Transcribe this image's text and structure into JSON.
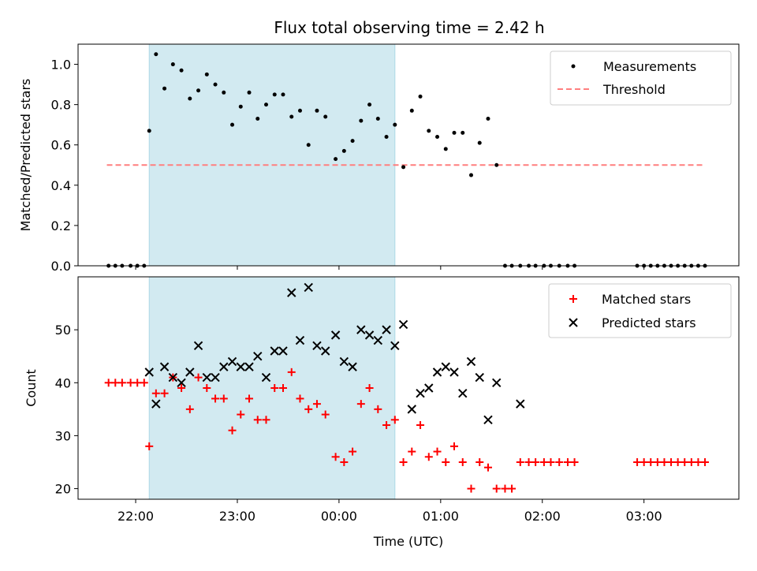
{
  "title": "Flux total observing time = 2.42 h",
  "colors": {
    "shade": "#add8e6",
    "measurement": "#000000",
    "threshold": "#ff7f7f",
    "matched": "#ff0000",
    "predicted": "#000000"
  },
  "chart_data": [
    {
      "type": "scatter",
      "title": "Flux total observing time = 2.42 h",
      "xlabel": "",
      "ylabel": "Matched/Predicted stars",
      "ylim": [
        0,
        1.1
      ],
      "yticks": [
        "0.0",
        "0.2",
        "0.4",
        "0.6",
        "0.8",
        "1.0"
      ],
      "xlim": [
        "21:26",
        "03:56"
      ],
      "grid": false,
      "legend": "top-right",
      "shaded_region": [
        "22:08",
        "00:33"
      ],
      "threshold": {
        "name": "Threshold",
        "y": 0.5,
        "x": [
          "21:43",
          "03:36"
        ],
        "style": "dashed"
      },
      "series": [
        {
          "name": "Measurements",
          "marker": "dot",
          "points": [
            [
              "21:44",
              0
            ],
            [
              "21:48",
              0
            ],
            [
              "21:52",
              0
            ],
            [
              "21:57",
              0
            ],
            [
              "22:01",
              0
            ],
            [
              "22:05",
              0
            ],
            [
              "22:08",
              0.67
            ],
            [
              "22:12",
              1.05
            ],
            [
              "22:17",
              0.88
            ],
            [
              "22:22",
              1.0
            ],
            [
              "22:27",
              0.97
            ],
            [
              "22:32",
              0.83
            ],
            [
              "22:37",
              0.87
            ],
            [
              "22:42",
              0.95
            ],
            [
              "22:47",
              0.9
            ],
            [
              "22:52",
              0.86
            ],
            [
              "22:57",
              0.7
            ],
            [
              "23:02",
              0.79
            ],
            [
              "23:07",
              0.86
            ],
            [
              "23:12",
              0.73
            ],
            [
              "23:17",
              0.8
            ],
            [
              "23:22",
              0.85
            ],
            [
              "23:27",
              0.85
            ],
            [
              "23:32",
              0.74
            ],
            [
              "23:37",
              0.77
            ],
            [
              "23:42",
              0.6
            ],
            [
              "23:47",
              0.77
            ],
            [
              "23:52",
              0.74
            ],
            [
              "23:58",
              0.53
            ],
            [
              "00:03",
              0.57
            ],
            [
              "00:08",
              0.62
            ],
            [
              "00:13",
              0.72
            ],
            [
              "00:18",
              0.8
            ],
            [
              "00:23",
              0.73
            ],
            [
              "00:28",
              0.64
            ],
            [
              "00:33",
              0.7
            ],
            [
              "00:38",
              0.49
            ],
            [
              "00:43",
              0.77
            ],
            [
              "00:48",
              0.84
            ],
            [
              "00:53",
              0.67
            ],
            [
              "00:58",
              0.64
            ],
            [
              "01:03",
              0.58
            ],
            [
              "01:08",
              0.66
            ],
            [
              "01:13",
              0.66
            ],
            [
              "01:18",
              0.45
            ],
            [
              "01:23",
              0.61
            ],
            [
              "01:28",
              0.73
            ],
            [
              "01:33",
              0.5
            ],
            [
              "01:38",
              0
            ],
            [
              "01:42",
              0
            ],
            [
              "01:47",
              0
            ],
            [
              "01:52",
              0
            ],
            [
              "01:56",
              0
            ],
            [
              "02:01",
              0
            ],
            [
              "02:05",
              0
            ],
            [
              "02:10",
              0
            ],
            [
              "02:15",
              0
            ],
            [
              "02:19",
              0
            ],
            [
              "02:56",
              0
            ],
            [
              "03:00",
              0
            ],
            [
              "03:04",
              0
            ],
            [
              "03:08",
              0
            ],
            [
              "03:12",
              0
            ],
            [
              "03:16",
              0
            ],
            [
              "03:20",
              0
            ],
            [
              "03:24",
              0
            ],
            [
              "03:28",
              0
            ],
            [
              "03:32",
              0
            ],
            [
              "03:36",
              0
            ]
          ]
        }
      ]
    },
    {
      "type": "scatter",
      "xlabel": "Time (UTC)",
      "ylabel": "Count",
      "ylim": [
        18,
        60
      ],
      "yticks": [
        "20",
        "30",
        "40",
        "50"
      ],
      "xlim": [
        "21:26",
        "03:56"
      ],
      "xticks": [
        "22:00",
        "23:00",
        "00:00",
        "01:00",
        "02:00",
        "03:00"
      ],
      "grid": false,
      "legend": "top-right",
      "shaded_region": [
        "22:08",
        "00:33"
      ],
      "series": [
        {
          "name": "Matched stars",
          "marker": "plus",
          "points": [
            [
              "21:44",
              40
            ],
            [
              "21:48",
              40
            ],
            [
              "21:52",
              40
            ],
            [
              "21:57",
              40
            ],
            [
              "22:01",
              40
            ],
            [
              "22:05",
              40
            ],
            [
              "22:08",
              28
            ],
            [
              "22:12",
              38
            ],
            [
              "22:17",
              38
            ],
            [
              "22:22",
              41
            ],
            [
              "22:27",
              39
            ],
            [
              "22:32",
              35
            ],
            [
              "22:37",
              41
            ],
            [
              "22:42",
              39
            ],
            [
              "22:47",
              37
            ],
            [
              "22:52",
              37
            ],
            [
              "22:57",
              31
            ],
            [
              "23:02",
              34
            ],
            [
              "23:07",
              37
            ],
            [
              "23:12",
              33
            ],
            [
              "23:17",
              33
            ],
            [
              "23:22",
              39
            ],
            [
              "23:27",
              39
            ],
            [
              "23:32",
              42
            ],
            [
              "23:37",
              37
            ],
            [
              "23:42",
              35
            ],
            [
              "23:47",
              36
            ],
            [
              "23:52",
              34
            ],
            [
              "23:58",
              26
            ],
            [
              "00:03",
              25
            ],
            [
              "00:08",
              27
            ],
            [
              "00:13",
              36
            ],
            [
              "00:18",
              39
            ],
            [
              "00:23",
              35
            ],
            [
              "00:28",
              32
            ],
            [
              "00:33",
              33
            ],
            [
              "00:38",
              25
            ],
            [
              "00:43",
              27
            ],
            [
              "00:48",
              32
            ],
            [
              "00:53",
              26
            ],
            [
              "00:58",
              27
            ],
            [
              "01:03",
              25
            ],
            [
              "01:08",
              28
            ],
            [
              "01:13",
              25
            ],
            [
              "01:18",
              20
            ],
            [
              "01:23",
              25
            ],
            [
              "01:28",
              24
            ],
            [
              "01:33",
              20
            ],
            [
              "01:38",
              20
            ],
            [
              "01:42",
              20
            ],
            [
              "01:47",
              25
            ],
            [
              "01:52",
              25
            ],
            [
              "01:56",
              25
            ],
            [
              "02:01",
              25
            ],
            [
              "02:05",
              25
            ],
            [
              "02:10",
              25
            ],
            [
              "02:15",
              25
            ],
            [
              "02:19",
              25
            ],
            [
              "02:56",
              25
            ],
            [
              "03:00",
              25
            ],
            [
              "03:04",
              25
            ],
            [
              "03:08",
              25
            ],
            [
              "03:12",
              25
            ],
            [
              "03:16",
              25
            ],
            [
              "03:20",
              25
            ],
            [
              "03:24",
              25
            ],
            [
              "03:28",
              25
            ],
            [
              "03:32",
              25
            ],
            [
              "03:36",
              25
            ]
          ]
        },
        {
          "name": "Predicted stars",
          "marker": "x",
          "points": [
            [
              "22:08",
              42
            ],
            [
              "22:12",
              36
            ],
            [
              "22:17",
              43
            ],
            [
              "22:22",
              41
            ],
            [
              "22:27",
              40
            ],
            [
              "22:32",
              42
            ],
            [
              "22:37",
              47
            ],
            [
              "22:42",
              41
            ],
            [
              "22:47",
              41
            ],
            [
              "22:52",
              43
            ],
            [
              "22:57",
              44
            ],
            [
              "23:02",
              43
            ],
            [
              "23:07",
              43
            ],
            [
              "23:12",
              45
            ],
            [
              "23:17",
              41
            ],
            [
              "23:22",
              46
            ],
            [
              "23:27",
              46
            ],
            [
              "23:32",
              57
            ],
            [
              "23:37",
              48
            ],
            [
              "23:42",
              58
            ],
            [
              "23:47",
              47
            ],
            [
              "23:52",
              46
            ],
            [
              "23:58",
              49
            ],
            [
              "00:03",
              44
            ],
            [
              "00:08",
              43
            ],
            [
              "00:13",
              50
            ],
            [
              "00:18",
              49
            ],
            [
              "00:23",
              48
            ],
            [
              "00:28",
              50
            ],
            [
              "00:33",
              47
            ],
            [
              "00:38",
              51
            ],
            [
              "00:43",
              35
            ],
            [
              "00:48",
              38
            ],
            [
              "00:53",
              39
            ],
            [
              "00:58",
              42
            ],
            [
              "01:03",
              43
            ],
            [
              "01:08",
              42
            ],
            [
              "01:13",
              38
            ],
            [
              "01:18",
              44
            ],
            [
              "01:23",
              41
            ],
            [
              "01:28",
              33
            ],
            [
              "01:33",
              40
            ],
            [
              "01:47",
              36
            ]
          ]
        }
      ]
    }
  ]
}
